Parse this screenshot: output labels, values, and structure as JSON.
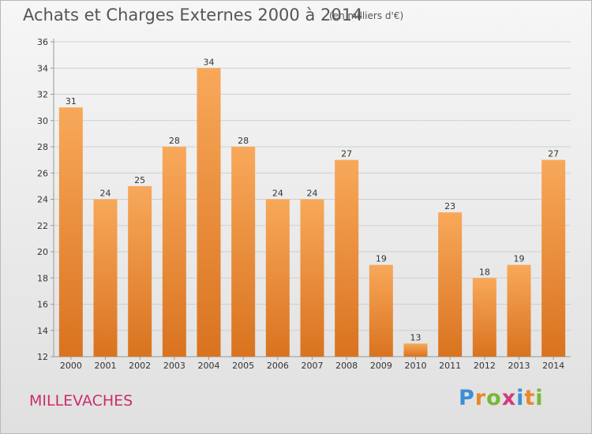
{
  "header": {
    "title": "Achats et Charges Externes 2000 à 2014",
    "subtitle": "(en milliers d'€)"
  },
  "footer": {
    "town": "MILLEVACHES",
    "logo": {
      "letters": [
        {
          "char": "P",
          "color": "#3a8fd6"
        },
        {
          "char": "r",
          "color": "#e8892b"
        },
        {
          "char": "o",
          "color": "#78b833"
        },
        {
          "char": "x",
          "color": "#d23a7a"
        },
        {
          "char": "i",
          "color": "#3a8fd6"
        },
        {
          "char": "t",
          "color": "#e8892b"
        },
        {
          "char": "i",
          "color": "#78b833"
        }
      ]
    }
  },
  "colors": {
    "bar_top": "#f8a85a",
    "bar_bottom": "#d9731f",
    "axis": "#999999",
    "grid": "#cfcfcf"
  },
  "chart_data": {
    "type": "bar",
    "categories": [
      "2000",
      "2001",
      "2002",
      "2003",
      "2004",
      "2005",
      "2006",
      "2007",
      "2008",
      "2009",
      "2010",
      "2011",
      "2012",
      "2013",
      "2014"
    ],
    "values": [
      31,
      24,
      25,
      28,
      34,
      28,
      24,
      24,
      27,
      19,
      13,
      23,
      18,
      19,
      27
    ],
    "title": "Achats et Charges Externes 2000 à 2014",
    "subtitle": "(en milliers d'€)",
    "ylim": [
      12,
      36
    ],
    "yticks": [
      12,
      14,
      16,
      18,
      20,
      22,
      24,
      26,
      28,
      30,
      32,
      34,
      36
    ],
    "grid": true,
    "data_labels": true
  }
}
